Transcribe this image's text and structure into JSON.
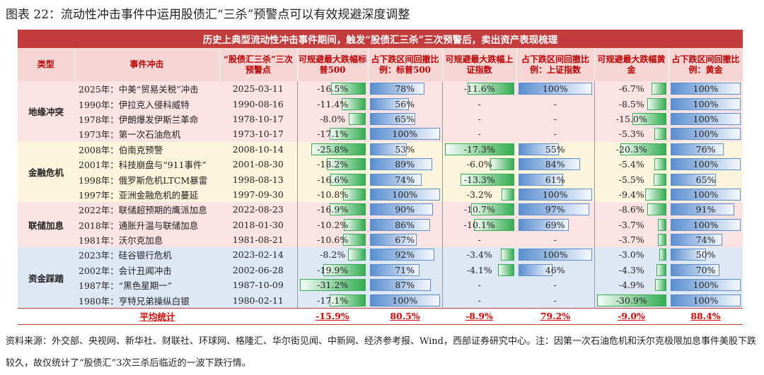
{
  "title": "图表 22：流动性冲击事件中运用股债汇“三杀”预警点可以有效规避深度调整",
  "table": {
    "banner": "历史上典型流动性冲击事件期间，触发“股债汇三杀”三次预警后，卖出资产表现梳理",
    "headers": [
      "类型",
      "事件冲击",
      "“股债汇三杀”三次预警点",
      "可规避最大跌幅标普500",
      "占下跌区间回撤比例：标普500",
      "可规避最大跌幅上证指数",
      "占下跌区间回撤比例：上证指数",
      "可规避最大跌幅黄金",
      "占下跌区间回撤比例：黄金"
    ],
    "groups": [
      {
        "name": "地缘冲突",
        "rows": [
          [
            "2025年：中美“贸易关税”冲击",
            "2025-03-11",
            "-16.5%",
            "78%",
            "-11.6%",
            "100%",
            "-6.7%",
            "100%"
          ],
          [
            "1990年：伊拉克入侵科威特",
            "1990-08-16",
            "-11.4%",
            "56%",
            "-",
            "-",
            "-8.5%",
            "100%"
          ],
          [
            "1978年：伊朗爆发伊斯兰革命",
            "1978-10-17",
            "-8.0%",
            "65%",
            "-",
            "-",
            "-15.0%",
            "100%"
          ],
          [
            "1973年：第一次石油危机",
            "1973-10-17",
            "-17.1%",
            "100%",
            "-",
            "-",
            "-5.3%",
            "100%"
          ]
        ]
      },
      {
        "name": "金融危机",
        "rows": [
          [
            "2008年：伯南克预警",
            "2008-10-14",
            "-25.8%",
            "53%",
            "-17.3%",
            "55%",
            "-20.3%",
            "76%"
          ],
          [
            "2001年：科技崩盘与“911事件”",
            "2001-08-30",
            "-18.2%",
            "89%",
            "-6.0%",
            "84%",
            "-5.4%",
            "100%"
          ],
          [
            "1998年：俄罗斯危机LTCM暴雷",
            "1998-08-13",
            "-16.6%",
            "74%",
            "-13.3%",
            "61%",
            "-5.5%",
            "65%"
          ],
          [
            "1997年：亚洲金融危机的蔓延",
            "1997-09-30",
            "-10.8%",
            "100%",
            "-3.2%",
            "100%",
            "-9.4%",
            "100%"
          ]
        ]
      },
      {
        "name": "联储加息",
        "rows": [
          [
            "2022年：联储超预期的鹰派加息",
            "2022-08-23",
            "-16.9%",
            "90%",
            "-10.7%",
            "97%",
            "-8.6%",
            "91%"
          ],
          [
            "2018年：通胀升温与联储加息",
            "2018-01-30",
            "-10.2%",
            "86%",
            "-10.1%",
            "69%",
            "-3.7%",
            "100%"
          ],
          [
            "1981年：沃尔克加息",
            "1981-08-21",
            "-10.6%",
            "67%",
            "-",
            "-",
            "-3.7%",
            "74%"
          ]
        ]
      },
      {
        "name": "资金踩踏",
        "rows": [
          [
            "2023年：硅谷银行危机",
            "2023-02-14",
            "-8.2%",
            "92%",
            "-3.4%",
            "100%",
            "-3.0%",
            "50%"
          ],
          [
            "2002年：会计丑闻冲击",
            "2002-06-28",
            "-19.9%",
            "71%",
            "-4.1%",
            "46%",
            "-4.3%",
            "70%"
          ],
          [
            "1987年：“黑色星期一”",
            "1987-10-09",
            "-31.2%",
            "87%",
            "-",
            "-",
            "-4.9%",
            "100%"
          ],
          [
            "1980年：亨特兄弟操纵白银",
            "1980-02-11",
            "-17.1%",
            "100%",
            "-",
            "-",
            "-30.9%",
            "100%"
          ]
        ]
      }
    ],
    "average": {
      "label": "平均统计",
      "values": [
        "-15.9%",
        "80.5%",
        "-8.9%",
        "79.2%",
        "-9.0%",
        "88.4%"
      ]
    }
  },
  "footnote": "资料来源：外交部、央视网、新华社、财联社、环球网、格隆汇、华尔街见闻、中新网、经济参考报、Wind，西部证券研究中心。注：因第一次石油危机和沃尔克极限加息事件美股下跌较久，故仅统计了“股债汇”3次三杀后临近的一波下跌行情。"
}
